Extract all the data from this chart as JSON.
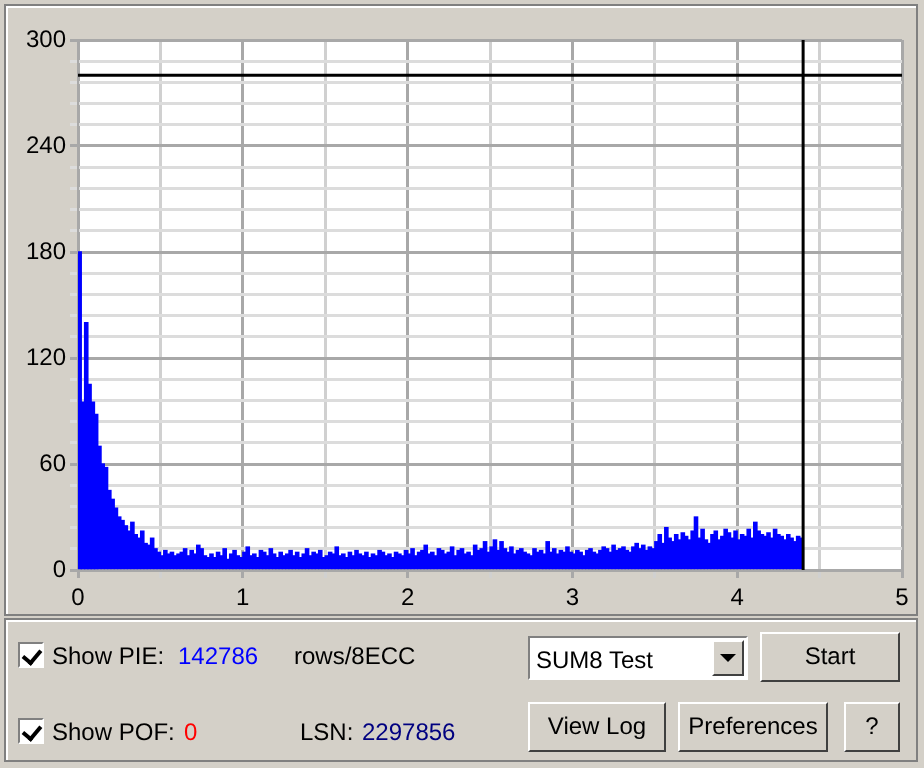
{
  "chart_data": {
    "type": "bar",
    "x": [
      0.01,
      0.03,
      0.05,
      0.07,
      0.09,
      0.11,
      0.13,
      0.15,
      0.17,
      0.19,
      0.21,
      0.23,
      0.25,
      0.27,
      0.29,
      0.31,
      0.33,
      0.35,
      0.37,
      0.39,
      0.41,
      0.43,
      0.45,
      0.47,
      0.49,
      0.51,
      0.53,
      0.55,
      0.57,
      0.59,
      0.61,
      0.63,
      0.65,
      0.67,
      0.69,
      0.71,
      0.73,
      0.75,
      0.77,
      0.79,
      0.81,
      0.83,
      0.85,
      0.87,
      0.89,
      0.91,
      0.93,
      0.95,
      0.97,
      0.99,
      1.01,
      1.03,
      1.05,
      1.07,
      1.09,
      1.11,
      1.13,
      1.15,
      1.17,
      1.19,
      1.21,
      1.23,
      1.25,
      1.27,
      1.29,
      1.31,
      1.33,
      1.35,
      1.37,
      1.39,
      1.41,
      1.43,
      1.45,
      1.47,
      1.49,
      1.51,
      1.53,
      1.55,
      1.57,
      1.59,
      1.61,
      1.63,
      1.65,
      1.67,
      1.69,
      1.71,
      1.73,
      1.75,
      1.77,
      1.79,
      1.81,
      1.83,
      1.85,
      1.87,
      1.89,
      1.91,
      1.93,
      1.95,
      1.97,
      1.99,
      2.01,
      2.03,
      2.05,
      2.07,
      2.09,
      2.11,
      2.13,
      2.15,
      2.17,
      2.19,
      2.21,
      2.23,
      2.25,
      2.27,
      2.29,
      2.31,
      2.33,
      2.35,
      2.37,
      2.39,
      2.41,
      2.43,
      2.45,
      2.47,
      2.49,
      2.51,
      2.53,
      2.55,
      2.57,
      2.59,
      2.61,
      2.63,
      2.65,
      2.67,
      2.69,
      2.71,
      2.73,
      2.75,
      2.77,
      2.79,
      2.81,
      2.83,
      2.85,
      2.87,
      2.89,
      2.91,
      2.93,
      2.95,
      2.97,
      2.99,
      3.01,
      3.03,
      3.05,
      3.07,
      3.09,
      3.11,
      3.13,
      3.15,
      3.17,
      3.19,
      3.21,
      3.23,
      3.25,
      3.27,
      3.29,
      3.31,
      3.33,
      3.35,
      3.37,
      3.39,
      3.41,
      3.43,
      3.45,
      3.47,
      3.49,
      3.51,
      3.53,
      3.55,
      3.57,
      3.59,
      3.61,
      3.63,
      3.65,
      3.67,
      3.69,
      3.71,
      3.73,
      3.75,
      3.77,
      3.79,
      3.81,
      3.83,
      3.85,
      3.87,
      3.89,
      3.91,
      3.93,
      3.95,
      3.97,
      3.99,
      4.01,
      4.03,
      4.05,
      4.07,
      4.09,
      4.11,
      4.13,
      4.15,
      4.17,
      4.19,
      4.21,
      4.23,
      4.25,
      4.27,
      4.29,
      4.31,
      4.33,
      4.35,
      4.37,
      4.39
    ],
    "series": [
      {
        "color": "#0000ff",
        "values": [
          180,
          95,
          140,
          105,
          95,
          88,
          70,
          60,
          58,
          45,
          40,
          35,
          30,
          28,
          25,
          22,
          27,
          20,
          18,
          22,
          15,
          14,
          18,
          12,
          10,
          8,
          11,
          9,
          10,
          8,
          9,
          10,
          12,
          8,
          11,
          9,
          14,
          12,
          8,
          7,
          9,
          7,
          10,
          8,
          12,
          6,
          9,
          11,
          8,
          7,
          10,
          13,
          8,
          9,
          7,
          11,
          10,
          8,
          12,
          9,
          7,
          10,
          8,
          9,
          11,
          8,
          10,
          7,
          9,
          12,
          8,
          10,
          9,
          11,
          7,
          8,
          10,
          9,
          13,
          8,
          9,
          7,
          10,
          8,
          11,
          9,
          8,
          10,
          7,
          9,
          8,
          11,
          10,
          8,
          9,
          7,
          10,
          9,
          8,
          11,
          9,
          12,
          8,
          10,
          11,
          14,
          9,
          10,
          8,
          12,
          11,
          9,
          10,
          13,
          8,
          11,
          12,
          9,
          10,
          8,
          14,
          11,
          12,
          16,
          10,
          13,
          17,
          11,
          16,
          12,
          10,
          13,
          9,
          11,
          12,
          10,
          9,
          8,
          12,
          10,
          11,
          9,
          16,
          10,
          12,
          9,
          11,
          10,
          13,
          10,
          9,
          11,
          10,
          8,
          11,
          12,
          10,
          9,
          11,
          13,
          12,
          10,
          14,
          11,
          12,
          13,
          11,
          10,
          13,
          15,
          12,
          14,
          11,
          13,
          12,
          16,
          20,
          15,
          24,
          18,
          16,
          20,
          17,
          21,
          19,
          17,
          22,
          30,
          18,
          23,
          17,
          15,
          20,
          22,
          17,
          19,
          23,
          21,
          18,
          22,
          17,
          20,
          19,
          23,
          18,
          27,
          22,
          20,
          19,
          21,
          18,
          23,
          20,
          19,
          17,
          20,
          18,
          16,
          19,
          18
        ]
      }
    ],
    "xlim": [
      0,
      5
    ],
    "xticks": [
      0,
      {
        "value": 0.5,
        "label": null
      },
      1,
      {
        "value": 1.5,
        "label": null
      },
      2,
      {
        "value": 2.5,
        "label": null
      },
      3,
      {
        "value": 3.5,
        "label": null
      },
      4,
      {
        "value": 4.5,
        "label": null
      },
      5
    ],
    "ylim": [
      0,
      300
    ],
    "yticks": [
      0,
      {
        "value": 12,
        "label": null
      },
      {
        "value": 24,
        "label": null
      },
      {
        "value": 36,
        "label": null
      },
      {
        "value": 48,
        "label": null
      },
      60,
      {
        "value": 72,
        "label": null
      },
      {
        "value": 84,
        "label": null
      },
      {
        "value": 96,
        "label": null
      },
      {
        "value": 108,
        "label": null
      },
      120,
      {
        "value": 132,
        "label": null
      },
      {
        "value": 144,
        "label": null
      },
      {
        "value": 156,
        "label": null
      },
      {
        "value": 168,
        "label": null
      },
      180,
      {
        "value": 192,
        "label": null
      },
      {
        "value": 204,
        "label": null
      },
      {
        "value": 216,
        "label": null
      },
      {
        "value": 228,
        "label": null
      },
      240,
      {
        "value": 252,
        "label": null
      },
      {
        "value": 264,
        "label": null
      },
      {
        "value": 276,
        "label": null
      },
      {
        "value": 288,
        "label": null
      },
      300
    ],
    "grid": true,
    "ref_lines": [
      {
        "axis": "y",
        "value": 280,
        "color": "#000000"
      },
      {
        "axis": "x",
        "value": 4.4,
        "color": "#000000"
      }
    ],
    "annotations": [
      "Show PIE:",
      "142786",
      "rows/8ECC",
      "SUM8 Test",
      "Start",
      "Show POF:",
      "0",
      "LSN:",
      "2297856",
      "View Log",
      "Preferences",
      "?"
    ]
  }
}
